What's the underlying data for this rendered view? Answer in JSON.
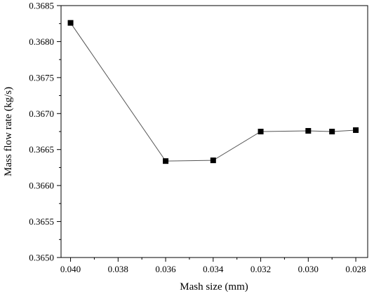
{
  "chart_data": {
    "type": "line",
    "title": "",
    "xlabel": "Mash size (mm)",
    "ylabel": "Mass flow rate (kg/s)",
    "x_reversed": true,
    "xlim": [
      0.0404,
      0.0275
    ],
    "ylim": [
      0.365,
      0.3685
    ],
    "x_ticks": [
      "0.040",
      "0.038",
      "0.036",
      "0.034",
      "0.032",
      "0.030",
      "0.028"
    ],
    "y_ticks": [
      "0.3650",
      "0.3655",
      "0.3660",
      "0.3665",
      "0.3670",
      "0.3675",
      "0.3680",
      "0.3685"
    ],
    "grid": false,
    "legend": "none",
    "series": [
      {
        "marker": "square",
        "color": "#000000",
        "line_color": "#555555",
        "x": [
          0.04,
          0.036,
          0.034,
          0.032,
          0.03,
          0.029,
          0.028
        ],
        "y": [
          0.36826,
          0.36634,
          0.36635,
          0.36675,
          0.36676,
          0.36675,
          0.36677
        ]
      }
    ]
  }
}
